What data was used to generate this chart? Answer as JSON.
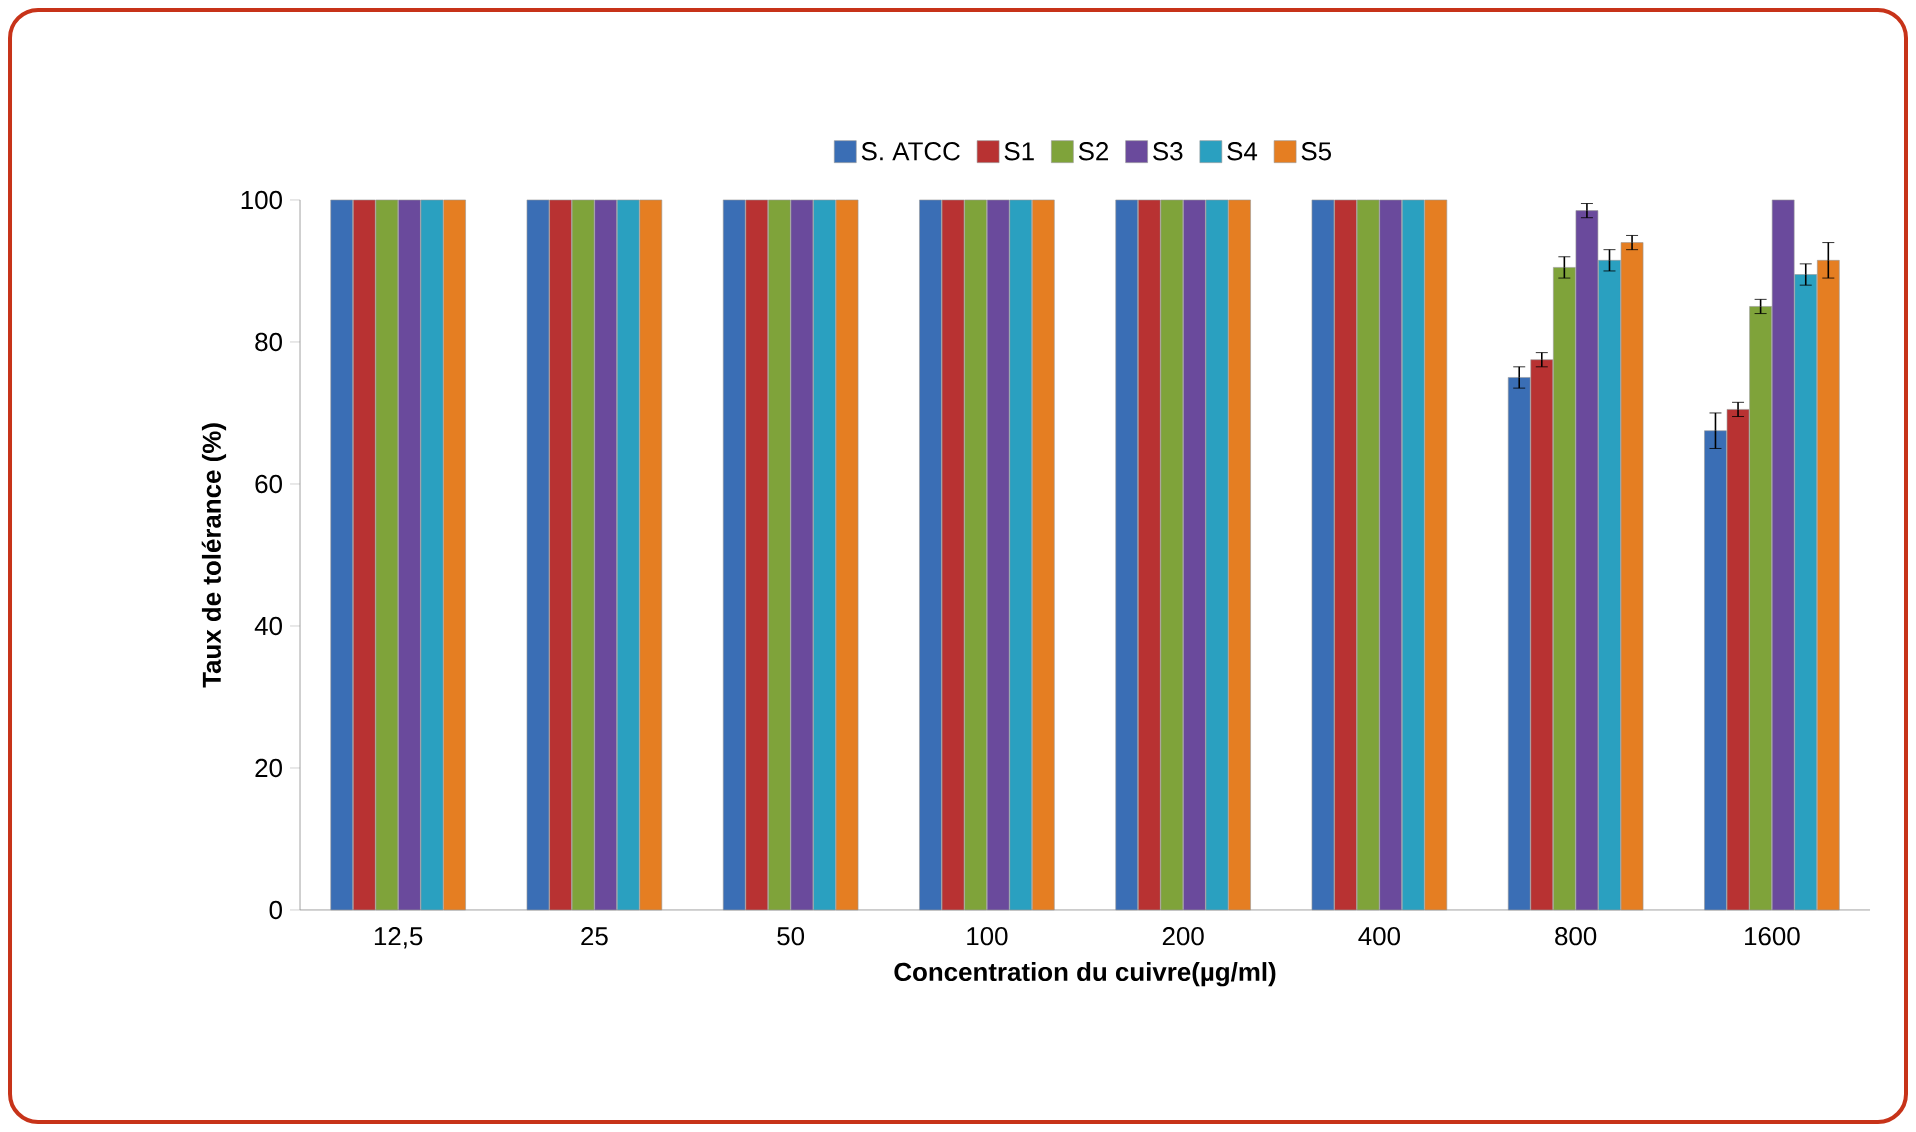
{
  "chart_data": {
    "type": "bar",
    "xlabel": "Concentration du cuivre(µg/ml)",
    "ylabel": "Taux de tolérance (%)",
    "categories": [
      "12,5",
      "25",
      "50",
      "100",
      "200",
      "400",
      "800",
      "1600"
    ],
    "series": [
      {
        "name": "S. ATCC",
        "color": "#3a6eb5",
        "values": [
          100,
          100,
          100,
          100,
          100,
          100,
          75,
          67.5
        ],
        "errors": [
          null,
          null,
          null,
          null,
          null,
          null,
          1.5,
          2.5
        ]
      },
      {
        "name": "S1",
        "color": "#b83232",
        "values": [
          100,
          100,
          100,
          100,
          100,
          100,
          77.5,
          70.5
        ],
        "errors": [
          null,
          null,
          null,
          null,
          null,
          null,
          1,
          1
        ]
      },
      {
        "name": "S2",
        "color": "#7fa33a",
        "values": [
          100,
          100,
          100,
          100,
          100,
          100,
          90.5,
          85
        ],
        "errors": [
          null,
          null,
          null,
          null,
          null,
          null,
          1.5,
          1
        ]
      },
      {
        "name": "S3",
        "color": "#6a4a9c",
        "values": [
          100,
          100,
          100,
          100,
          100,
          100,
          98.5,
          100
        ],
        "errors": [
          null,
          null,
          null,
          null,
          null,
          null,
          1,
          null
        ]
      },
      {
        "name": "S4",
        "color": "#2aa0c0",
        "values": [
          100,
          100,
          100,
          100,
          100,
          100,
          91.5,
          89.5
        ],
        "errors": [
          null,
          null,
          null,
          null,
          null,
          null,
          1.5,
          1.5
        ]
      },
      {
        "name": "S5",
        "color": "#e57e22",
        "values": [
          100,
          100,
          100,
          100,
          100,
          100,
          94,
          91.5
        ],
        "errors": [
          null,
          null,
          null,
          null,
          null,
          null,
          1,
          2.5
        ]
      }
    ],
    "ylim": [
      0,
      100
    ],
    "yticks": [
      0,
      20,
      40,
      60,
      80,
      100
    ],
    "legend": "top",
    "grid": false
  }
}
